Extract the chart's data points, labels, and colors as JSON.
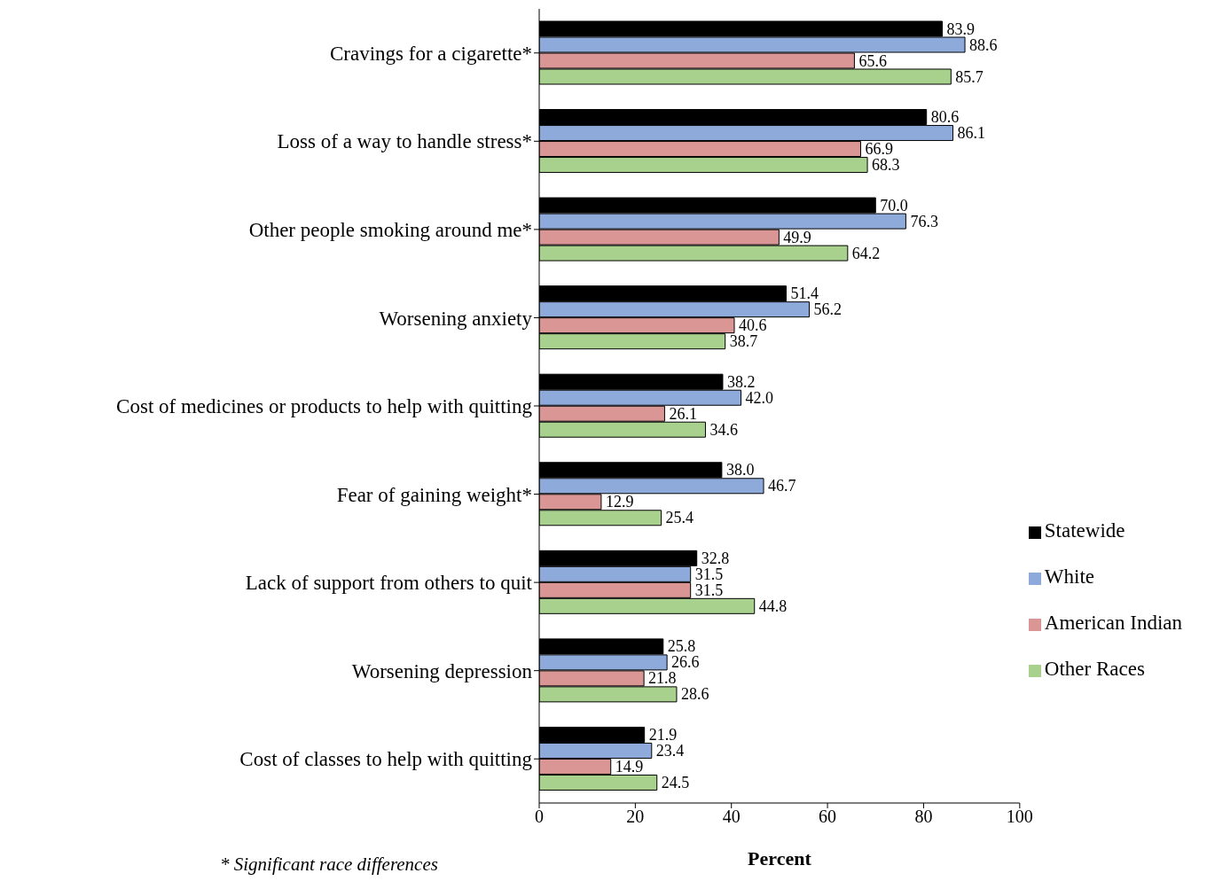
{
  "chart_data": {
    "type": "bar",
    "orientation": "horizontal",
    "categories": [
      "Cravings for a cigarette*",
      "Loss of a way to handle stress*",
      "Other people smoking around me*",
      "Worsening anxiety",
      "Cost of medicines or products to help with quitting",
      "Fear of gaining weight*",
      "Lack of support from others to quit",
      "Worsening depression",
      "Cost of classes to help with quitting"
    ],
    "series": [
      {
        "name": "Statewide",
        "color": "#000000",
        "values": [
          83.9,
          80.6,
          70.0,
          51.4,
          38.2,
          38.0,
          32.8,
          25.8,
          21.9
        ],
        "value_labels": [
          "83.9",
          "80.6",
          "70.0",
          "51.4",
          "38.2",
          "38.0",
          "32.8",
          "25.8",
          "21.9"
        ]
      },
      {
        "name": "White",
        "color": "#8eaadb",
        "values": [
          88.6,
          86.1,
          76.3,
          56.2,
          42.0,
          46.7,
          31.5,
          26.6,
          23.4
        ],
        "value_labels": [
          "88.6",
          "86.1",
          "76.3",
          "56.2",
          "42.0",
          "46.7",
          "31.5",
          "26.6",
          "23.4"
        ]
      },
      {
        "name": "American Indian",
        "color": "#d99694",
        "values": [
          65.6,
          66.9,
          49.9,
          40.6,
          26.1,
          12.9,
          31.5,
          21.8,
          14.9
        ],
        "value_labels": [
          "65.6",
          "66.9",
          "49.9",
          "40.6",
          "26.1",
          "12.9",
          "31.5",
          "21.8",
          "14.9"
        ]
      },
      {
        "name": "Other Races",
        "color": "#a9d18e",
        "values": [
          85.7,
          68.3,
          64.2,
          38.7,
          34.6,
          25.4,
          44.8,
          28.6,
          24.5
        ],
        "value_labels": [
          "85.7",
          "68.3",
          "64.2",
          "38.7",
          "34.6",
          "25.4",
          "44.8",
          "28.6",
          "24.5"
        ]
      }
    ],
    "xlim": [
      0,
      100
    ],
    "xticks": [
      0,
      20,
      40,
      60,
      80,
      100
    ],
    "xlabel": "Percent",
    "legend": "right",
    "grid": false,
    "annotations": [
      "* Significant race differences"
    ]
  }
}
